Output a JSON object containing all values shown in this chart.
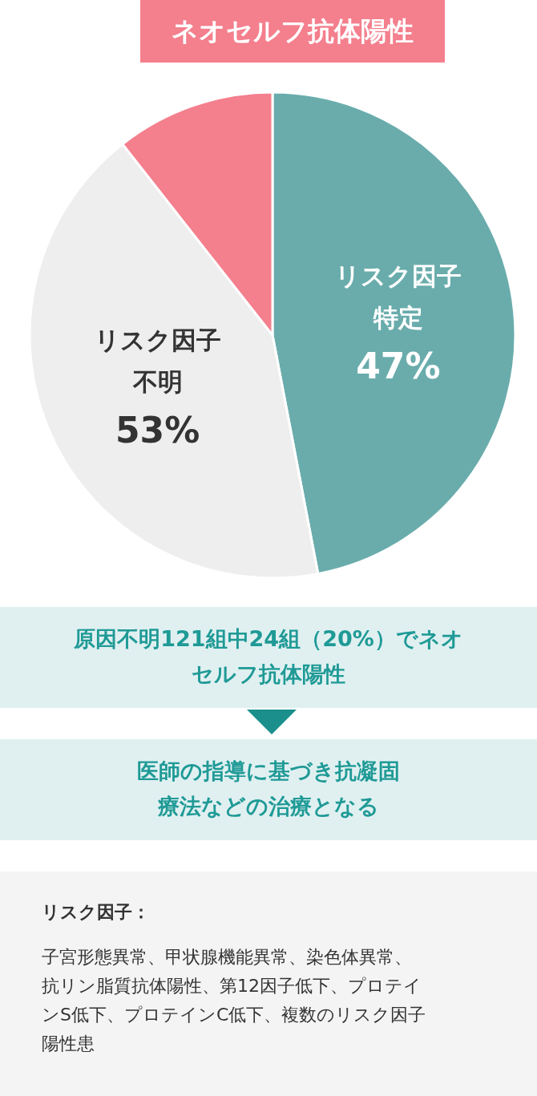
{
  "chart_data": {
    "type": "pie",
    "categories": [
      "リスク因子特定",
      "リスク因子不明",
      "ネオセルフ抗体陽性"
    ],
    "values": [
      47,
      42.4,
      10.6
    ],
    "colors": [
      "#6aacac",
      "#eeeeee",
      "#f47f8d"
    ],
    "value_labels": [
      "47%",
      null,
      null
    ],
    "annotations": [
      "53%",
      "原因不明121組中24組（20%）でネオセルフ抗体陽性",
      "医師の指導に基づき抗凝固療法などの治療となる",
      "リスク因子：",
      "子宮形態異常、甲状腺機能異常、染色体異常、抗リン脂質抗体陽性、第12因子低下、プロテインS低下、プロテインC低下、複数のリスク因子陽性患"
    ]
  }
}
